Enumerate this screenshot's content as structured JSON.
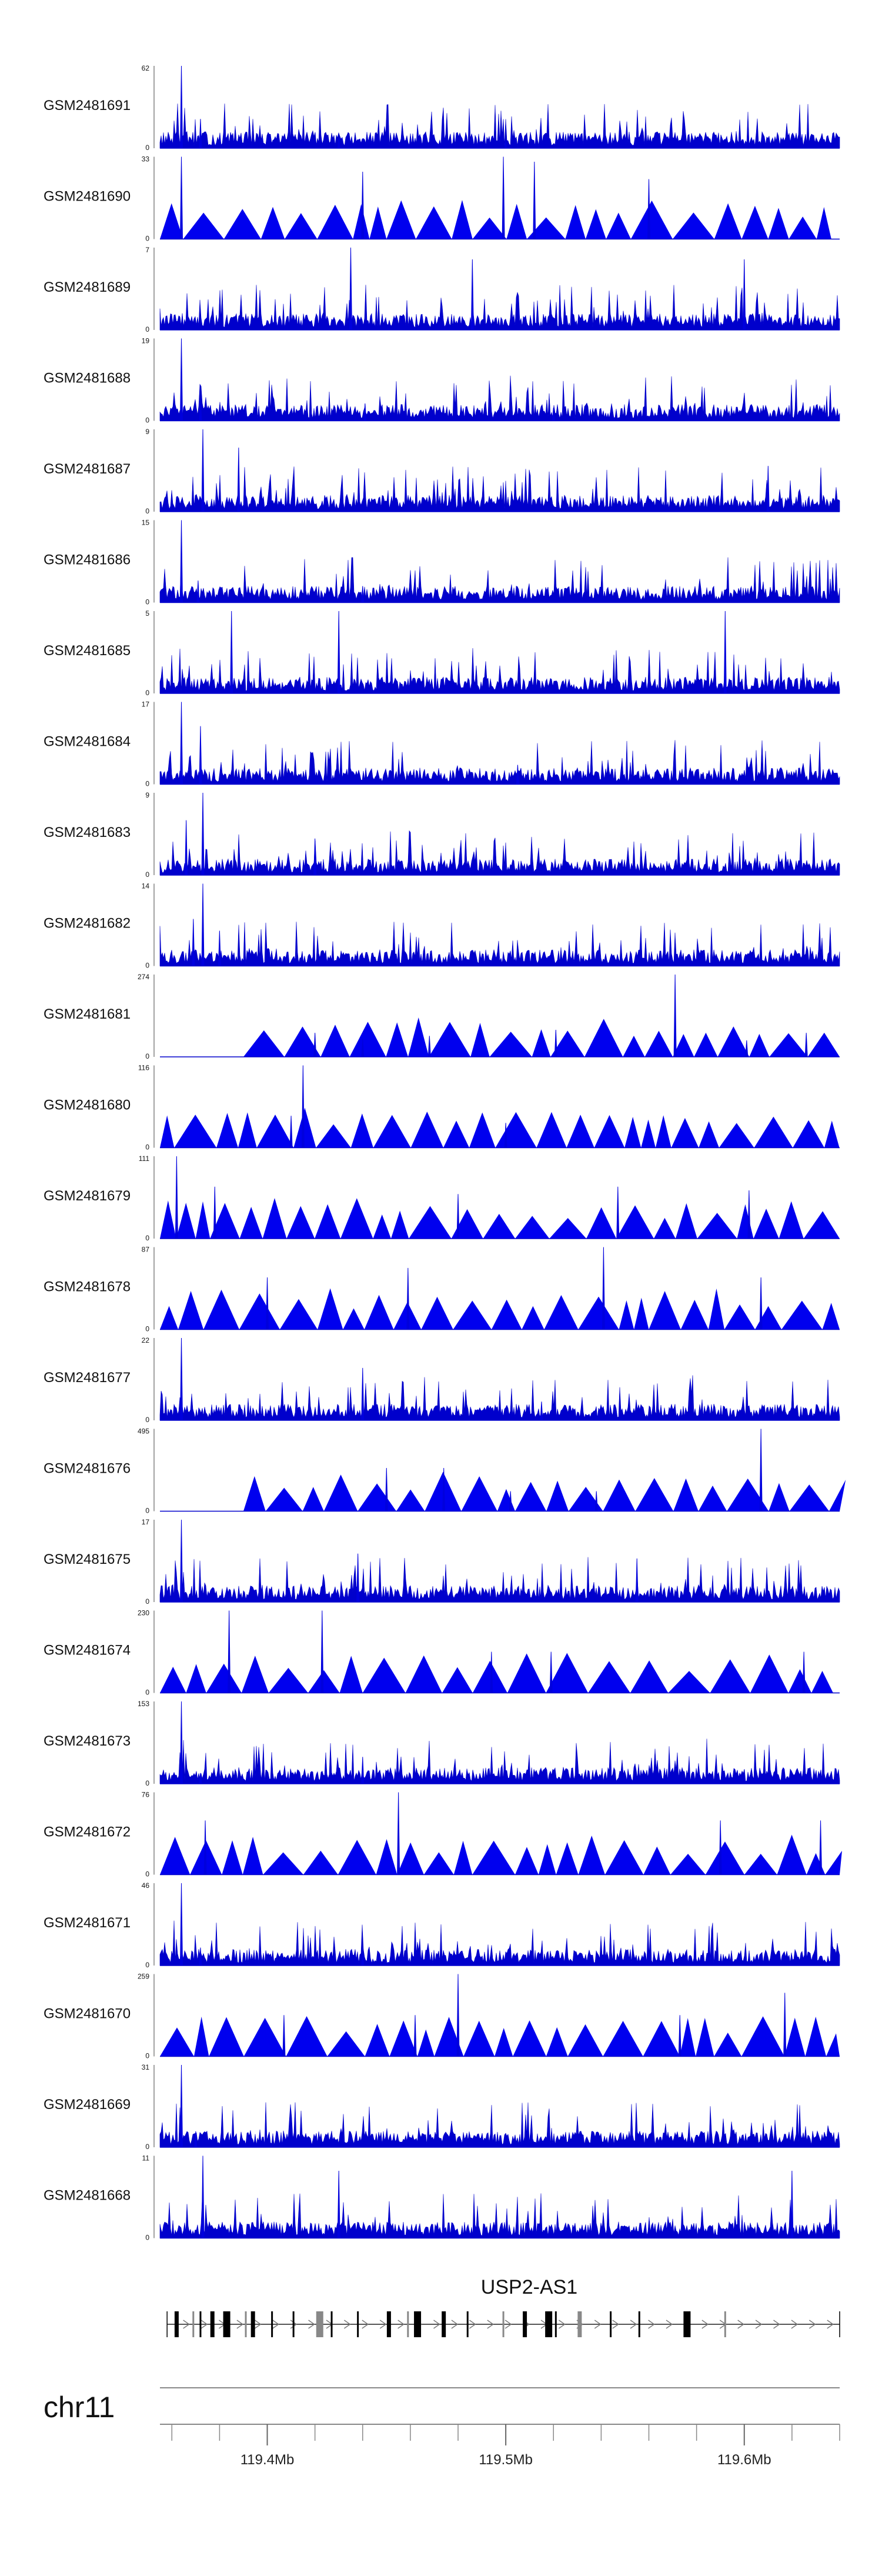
{
  "chart_data": {
    "type": "area",
    "title": "",
    "xlabel": "",
    "ylabel": "",
    "chromosome": "chr11",
    "xlim": [
      119.355,
      119.64
    ],
    "x_ticks": [
      {
        "value": 119.4,
        "label": "119.4Mb"
      },
      {
        "value": 119.5,
        "label": "119.5Mb"
      },
      {
        "value": 119.6,
        "label": "119.6Mb"
      }
    ],
    "gene": {
      "label": "USP2-AS1",
      "start": 119.358,
      "end": 119.64,
      "strand": "+",
      "exons": [
        119.362,
        119.369,
        119.372,
        119.377,
        119.383,
        119.391,
        119.394,
        119.402,
        119.411,
        119.422,
        119.427,
        119.438,
        119.451,
        119.459,
        119.463,
        119.474,
        119.484,
        119.499,
        119.508,
        119.518,
        119.521,
        119.531,
        119.544,
        119.556,
        119.576,
        119.592
      ]
    },
    "series": [
      {
        "name": "GSM2481691",
        "ymax": 62,
        "style": "dense",
        "peaks": [
          {
            "x": 119.364,
            "y": 62
          },
          {
            "x": 119.372,
            "y": 22
          },
          {
            "x": 119.43,
            "y": 8
          },
          {
            "x": 119.5,
            "y": 6
          }
        ]
      },
      {
        "name": "GSM2481690",
        "ymax": 33,
        "style": "sparse",
        "peaks": [
          {
            "x": 119.364,
            "y": 33
          },
          {
            "x": 119.44,
            "y": 27
          },
          {
            "x": 119.499,
            "y": 33
          },
          {
            "x": 119.512,
            "y": 31
          },
          {
            "x": 119.56,
            "y": 24
          }
        ]
      },
      {
        "name": "GSM2481689",
        "ymax": 7,
        "style": "dense",
        "peaks": [
          {
            "x": 119.435,
            "y": 7
          },
          {
            "x": 119.486,
            "y": 6
          },
          {
            "x": 119.6,
            "y": 6
          }
        ]
      },
      {
        "name": "GSM2481688",
        "ymax": 19,
        "style": "dense",
        "peaks": [
          {
            "x": 119.364,
            "y": 19
          },
          {
            "x": 119.372,
            "y": 5
          },
          {
            "x": 119.441,
            "y": 4
          },
          {
            "x": 119.52,
            "y": 3
          }
        ]
      },
      {
        "name": "GSM2481687",
        "ymax": 9,
        "style": "dense",
        "peaks": [
          {
            "x": 119.373,
            "y": 9
          },
          {
            "x": 119.388,
            "y": 7
          },
          {
            "x": 119.61,
            "y": 5
          }
        ]
      },
      {
        "name": "GSM2481686",
        "ymax": 15,
        "style": "dense",
        "peaks": [
          {
            "x": 119.364,
            "y": 15
          },
          {
            "x": 119.371,
            "y": 4
          },
          {
            "x": 119.44,
            "y": 3
          }
        ]
      },
      {
        "name": "GSM2481685",
        "ymax": 5,
        "style": "dense",
        "peaks": [
          {
            "x": 119.385,
            "y": 5
          },
          {
            "x": 119.43,
            "y": 5
          },
          {
            "x": 119.592,
            "y": 5
          }
        ]
      },
      {
        "name": "GSM2481684",
        "ymax": 17,
        "style": "dense",
        "peaks": [
          {
            "x": 119.364,
            "y": 17
          },
          {
            "x": 119.372,
            "y": 12
          },
          {
            "x": 119.505,
            "y": 4
          }
        ]
      },
      {
        "name": "GSM2481683",
        "ymax": 9,
        "style": "dense",
        "peaks": [
          {
            "x": 119.373,
            "y": 9
          },
          {
            "x": 119.366,
            "y": 6
          },
          {
            "x": 119.42,
            "y": 4
          }
        ]
      },
      {
        "name": "GSM2481682",
        "ymax": 14,
        "style": "dense",
        "peaks": [
          {
            "x": 119.373,
            "y": 14
          },
          {
            "x": 119.369,
            "y": 8
          },
          {
            "x": 119.38,
            "y": 6
          }
        ]
      },
      {
        "name": "GSM2481681",
        "ymax": 274,
        "style": "sparse",
        "peaks": [
          {
            "x": 119.42,
            "y": 80
          },
          {
            "x": 119.44,
            "y": 60
          },
          {
            "x": 119.468,
            "y": 70
          },
          {
            "x": 119.521,
            "y": 90
          },
          {
            "x": 119.571,
            "y": 274
          },
          {
            "x": 119.601,
            "y": 55
          },
          {
            "x": 119.626,
            "y": 80
          }
        ]
      },
      {
        "name": "GSM2481680",
        "ymax": 116,
        "style": "sparse",
        "peaks": [
          {
            "x": 119.415,
            "y": 116
          },
          {
            "x": 119.41,
            "y": 45
          },
          {
            "x": 119.5,
            "y": 35
          }
        ]
      },
      {
        "name": "GSM2481679",
        "ymax": 111,
        "style": "sparse",
        "peaks": [
          {
            "x": 119.362,
            "y": 111
          },
          {
            "x": 119.378,
            "y": 70
          },
          {
            "x": 119.48,
            "y": 60
          },
          {
            "x": 119.547,
            "y": 70
          },
          {
            "x": 119.602,
            "y": 65
          }
        ]
      },
      {
        "name": "GSM2481678",
        "ymax": 87,
        "style": "sparse",
        "peaks": [
          {
            "x": 119.4,
            "y": 55
          },
          {
            "x": 119.459,
            "y": 65
          },
          {
            "x": 119.541,
            "y": 87
          },
          {
            "x": 119.607,
            "y": 55
          }
        ]
      },
      {
        "name": "GSM2481677",
        "ymax": 22,
        "style": "dense",
        "peaks": [
          {
            "x": 119.364,
            "y": 22
          },
          {
            "x": 119.44,
            "y": 14
          },
          {
            "x": 119.515,
            "y": 5
          }
        ]
      },
      {
        "name": "GSM2481676",
        "ymax": 495,
        "style": "sparse",
        "peaks": [
          {
            "x": 119.45,
            "y": 260
          },
          {
            "x": 119.474,
            "y": 260
          },
          {
            "x": 119.607,
            "y": 495
          },
          {
            "x": 119.502,
            "y": 120
          },
          {
            "x": 119.538,
            "y": 120
          }
        ]
      },
      {
        "name": "GSM2481675",
        "ymax": 17,
        "style": "dense",
        "peaks": [
          {
            "x": 119.364,
            "y": 17
          },
          {
            "x": 119.438,
            "y": 10
          },
          {
            "x": 119.555,
            "y": 9
          }
        ]
      },
      {
        "name": "GSM2481674",
        "ymax": 230,
        "style": "sparse",
        "peaks": [
          {
            "x": 119.384,
            "y": 230
          },
          {
            "x": 119.423,
            "y": 230
          },
          {
            "x": 119.494,
            "y": 115
          },
          {
            "x": 119.519,
            "y": 115
          },
          {
            "x": 119.625,
            "y": 115
          }
        ]
      },
      {
        "name": "GSM2481673",
        "ymax": 153,
        "style": "dense",
        "peaks": [
          {
            "x": 119.364,
            "y": 153
          },
          {
            "x": 119.44,
            "y": 50
          },
          {
            "x": 119.372,
            "y": 20
          }
        ]
      },
      {
        "name": "GSM2481672",
        "ymax": 76,
        "style": "sparse",
        "peaks": [
          {
            "x": 119.374,
            "y": 50
          },
          {
            "x": 119.455,
            "y": 76
          },
          {
            "x": 119.59,
            "y": 50
          },
          {
            "x": 119.632,
            "y": 50
          }
        ]
      },
      {
        "name": "GSM2481671",
        "ymax": 46,
        "style": "dense",
        "peaks": [
          {
            "x": 119.364,
            "y": 46
          },
          {
            "x": 119.372,
            "y": 10
          },
          {
            "x": 119.44,
            "y": 8
          }
        ]
      },
      {
        "name": "GSM2481670",
        "ymax": 259,
        "style": "sparse",
        "peaks": [
          {
            "x": 119.48,
            "y": 259
          },
          {
            "x": 119.617,
            "y": 200
          },
          {
            "x": 119.407,
            "y": 130
          },
          {
            "x": 119.462,
            "y": 130
          },
          {
            "x": 119.573,
            "y": 130
          }
        ]
      },
      {
        "name": "GSM2481669",
        "ymax": 31,
        "style": "dense",
        "peaks": [
          {
            "x": 119.364,
            "y": 31
          },
          {
            "x": 119.37,
            "y": 6
          }
        ]
      },
      {
        "name": "GSM2481668",
        "ymax": 11,
        "style": "dense",
        "peaks": [
          {
            "x": 119.373,
            "y": 11
          },
          {
            "x": 119.43,
            "y": 9
          },
          {
            "x": 119.62,
            "y": 9
          }
        ]
      }
    ]
  }
}
